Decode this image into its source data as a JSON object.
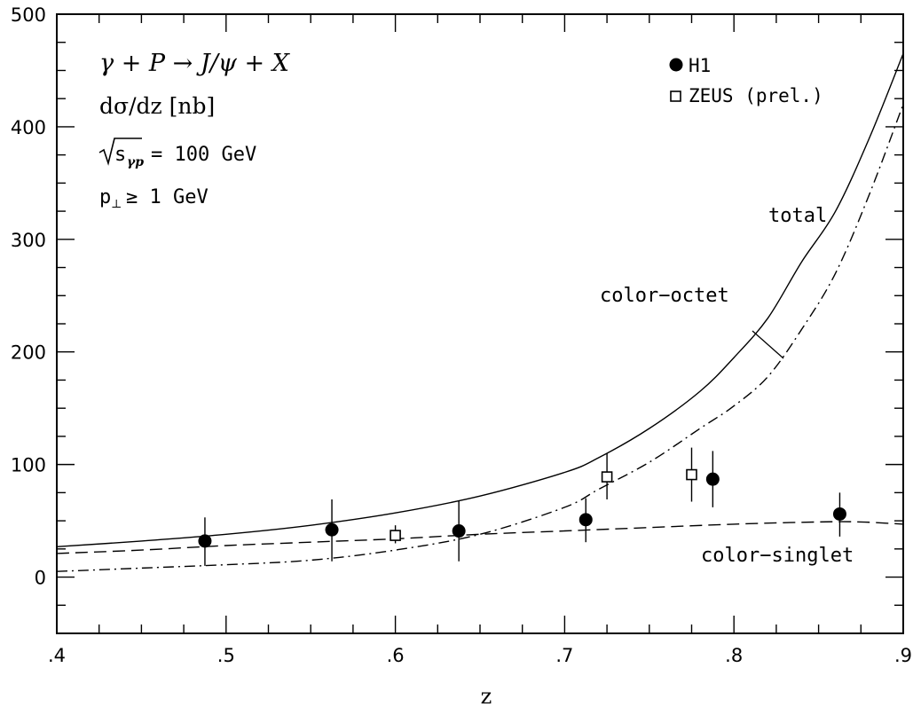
{
  "chart_data": {
    "type": "line",
    "xlabel": "z",
    "x_ticks": [
      ".4",
      ".5",
      ".6",
      ".7",
      ".8",
      ".9"
    ],
    "y_ticks": [
      "0",
      "100",
      "200",
      "300",
      "400",
      "500"
    ],
    "xlim": [
      0.4,
      0.9
    ],
    "ylim": [
      -50,
      500
    ],
    "grid": false,
    "legend_position": "top-right",
    "annotations": {
      "process": "γ + P → J/ψ + X",
      "observable": "dσ/dz [nb]",
      "energy_rad": "s",
      "energy_sub": "γp",
      "energy_rest": "= 100 GeV",
      "pt_p": "p",
      "pt_sub": "⊥",
      "pt_rest": "≥ 1 GeV"
    },
    "curve_labels": {
      "total": "total",
      "octet": "color−octet",
      "singlet": "color−singlet"
    },
    "curves": [
      {
        "id": "total",
        "style": "solid",
        "points": [
          [
            0.4,
            27
          ],
          [
            0.45,
            32
          ],
          [
            0.5,
            38
          ],
          [
            0.55,
            46
          ],
          [
            0.6,
            57
          ],
          [
            0.65,
            72
          ],
          [
            0.7,
            93
          ],
          [
            0.72,
            106
          ],
          [
            0.75,
            132
          ],
          [
            0.78,
            165
          ],
          [
            0.8,
            195
          ],
          [
            0.82,
            230
          ],
          [
            0.84,
            280
          ],
          [
            0.86,
            325
          ],
          [
            0.88,
            390
          ],
          [
            0.9,
            465
          ]
        ]
      },
      {
        "id": "octet",
        "style": "dashdot",
        "points": [
          [
            0.4,
            5
          ],
          [
            0.45,
            8
          ],
          [
            0.5,
            11
          ],
          [
            0.55,
            15
          ],
          [
            0.6,
            24
          ],
          [
            0.65,
            38
          ],
          [
            0.7,
            62
          ],
          [
            0.72,
            78
          ],
          [
            0.75,
            102
          ],
          [
            0.78,
            132
          ],
          [
            0.8,
            152
          ],
          [
            0.82,
            178
          ],
          [
            0.84,
            220
          ],
          [
            0.86,
            270
          ],
          [
            0.88,
            340
          ],
          [
            0.9,
            420
          ]
        ]
      },
      {
        "id": "singlet",
        "style": "dashed",
        "points": [
          [
            0.4,
            21
          ],
          [
            0.45,
            24
          ],
          [
            0.5,
            28
          ],
          [
            0.55,
            31
          ],
          [
            0.6,
            34
          ],
          [
            0.65,
            38
          ],
          [
            0.7,
            41
          ],
          [
            0.75,
            44
          ],
          [
            0.8,
            47
          ],
          [
            0.85,
            49
          ],
          [
            0.875,
            49
          ],
          [
            0.9,
            47
          ]
        ]
      }
    ],
    "series": [
      {
        "name": "H1",
        "marker": "filled-circle",
        "points": [
          {
            "x": 0.4875,
            "y": 32,
            "ylo": 10,
            "yhi": 53
          },
          {
            "x": 0.5625,
            "y": 42,
            "ylo": 14,
            "yhi": 69
          },
          {
            "x": 0.6375,
            "y": 41,
            "ylo": 14,
            "yhi": 68
          },
          {
            "x": 0.7125,
            "y": 51,
            "ylo": 31,
            "yhi": 70
          },
          {
            "x": 0.7875,
            "y": 87,
            "ylo": 62,
            "yhi": 112
          },
          {
            "x": 0.8625,
            "y": 56,
            "ylo": 36,
            "yhi": 75
          }
        ]
      },
      {
        "name": "ZEUS (prel.)",
        "marker": "open-square",
        "points": [
          {
            "x": 0.6,
            "y": 37,
            "ylo": 30,
            "yhi": 46
          },
          {
            "x": 0.725,
            "y": 89,
            "ylo": 69,
            "yhi": 110
          },
          {
            "x": 0.775,
            "y": 91,
            "ylo": 67,
            "yhi": 115
          }
        ]
      }
    ]
  }
}
